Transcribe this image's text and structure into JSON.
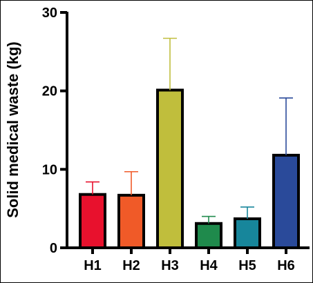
{
  "chart_data": {
    "type": "bar",
    "title": "",
    "xlabel": "",
    "ylabel": "Solid medical waste (kg)",
    "ylim": [
      0,
      30
    ],
    "yticks": [
      0,
      10,
      20,
      30
    ],
    "grid": false,
    "categories": [
      "H1",
      "H2",
      "H3",
      "H4",
      "H5",
      "H6"
    ],
    "values": [
      6.8,
      6.7,
      20.1,
      3.1,
      3.7,
      11.8
    ],
    "error_upper": [
      1.6,
      3.0,
      6.6,
      0.9,
      1.5,
      7.3
    ],
    "colors": [
      "#e8112d",
      "#f05a28",
      "#c0be3c",
      "#1f8a4c",
      "#17869b",
      "#2a4a9a"
    ],
    "errorbar_colors": [
      "#e8112d",
      "#f05a28",
      "#c0be3c",
      "#1f8a4c",
      "#17869b",
      "#2a4a9a"
    ]
  }
}
